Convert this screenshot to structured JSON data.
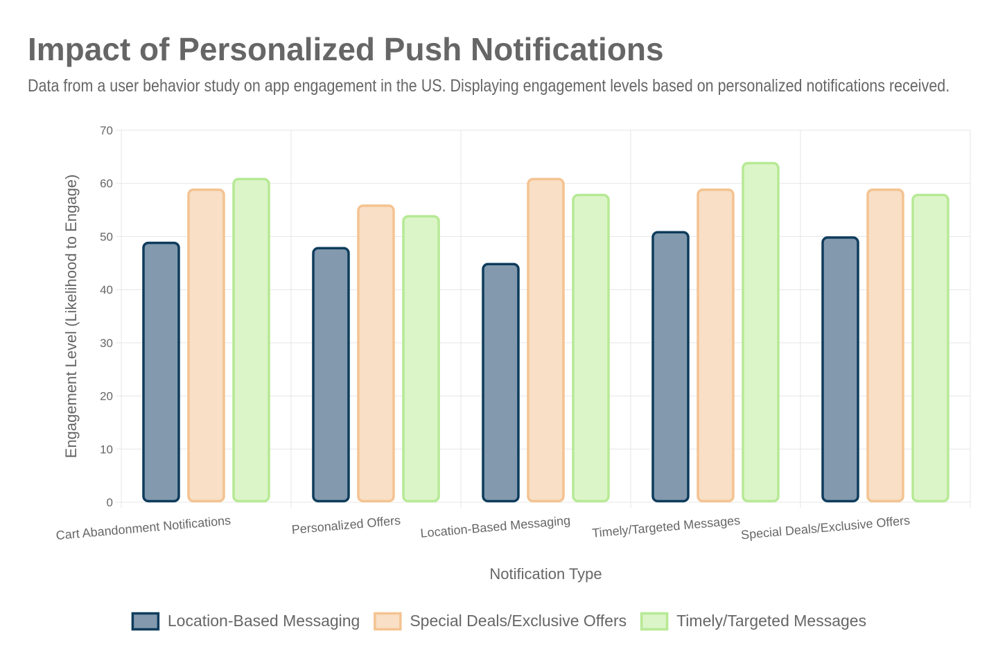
{
  "header": {
    "title": "Impact of Personalized Push Notifications",
    "subtitle": "Data from a user behavior study on app engagement in the US. Displaying engagement levels based on personalized notifications received."
  },
  "chart_data": {
    "type": "bar",
    "title": "Impact of Personalized Push Notifications",
    "subtitle": "Data from a user behavior study on app engagement in the US. Displaying engagement levels based on personalized notifications received.",
    "xlabel": "Notification Type",
    "ylabel": "Engagement Level (Likelihood to Engage)",
    "ylim": [
      0,
      70
    ],
    "yticks": [
      0,
      10,
      20,
      30,
      40,
      50,
      60,
      70
    ],
    "grid": true,
    "legend_position": "bottom",
    "categories": [
      "Cart Abandonment Notifications",
      "Personalized Offers",
      "Location-Based Messaging",
      "Timely/Targeted Messages",
      "Special Deals/Exclusive Offers"
    ],
    "series": [
      {
        "name": "Location-Based Messaging",
        "values": [
          49,
          48,
          45,
          51,
          50
        ],
        "fill": "#8399ad",
        "stroke": "#0e3c5c"
      },
      {
        "name": "Special Deals/Exclusive Offers",
        "values": [
          59,
          56,
          61,
          59,
          59
        ],
        "fill": "#f8dfc6",
        "stroke": "#f4c391"
      },
      {
        "name": "Timely/Targeted Messages",
        "values": [
          61,
          54,
          58,
          64,
          58
        ],
        "fill": "#dbf5c8",
        "stroke": "#b7e995"
      }
    ]
  }
}
